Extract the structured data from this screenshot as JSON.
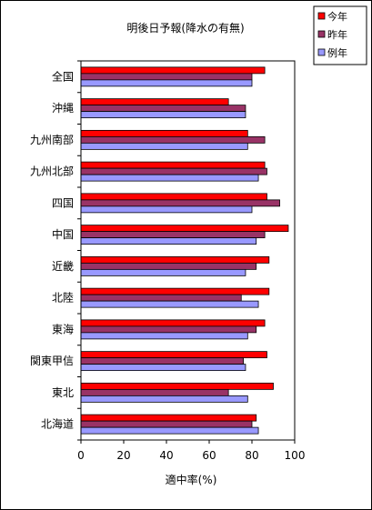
{
  "chart_data": {
    "type": "bar",
    "orientation": "horizontal",
    "title": "明後日予報(降水の有無)",
    "xlabel": "適中率(%)",
    "ylabel": "",
    "xlim": [
      0,
      100
    ],
    "xticks": [
      "0",
      "20",
      "40",
      "60",
      "80",
      "100"
    ],
    "grid": false,
    "legend_position": "top-right",
    "categories": [
      "全国",
      "沖縄",
      "九州南部",
      "九州北部",
      "四国",
      "中国",
      "近畿",
      "北陸",
      "東海",
      "関東甲信",
      "東北",
      "北海道"
    ],
    "series": [
      {
        "name": "今年",
        "color": "#ff0000",
        "values": [
          86,
          69,
          78,
          86,
          87,
          97,
          88,
          88,
          86,
          87,
          90,
          82
        ]
      },
      {
        "name": "昨年",
        "color": "#993366",
        "values": [
          80,
          77,
          86,
          87,
          93,
          86,
          82,
          75,
          82,
          76,
          69,
          80
        ]
      },
      {
        "name": "例年",
        "color": "#9999ff",
        "values": [
          80,
          77,
          78,
          83,
          80,
          82,
          77,
          83,
          78,
          77,
          78,
          83
        ]
      }
    ],
    "highlight_band": {
      "from": 100,
      "color": "#ccffff"
    },
    "plot_background": "#ffffff"
  }
}
